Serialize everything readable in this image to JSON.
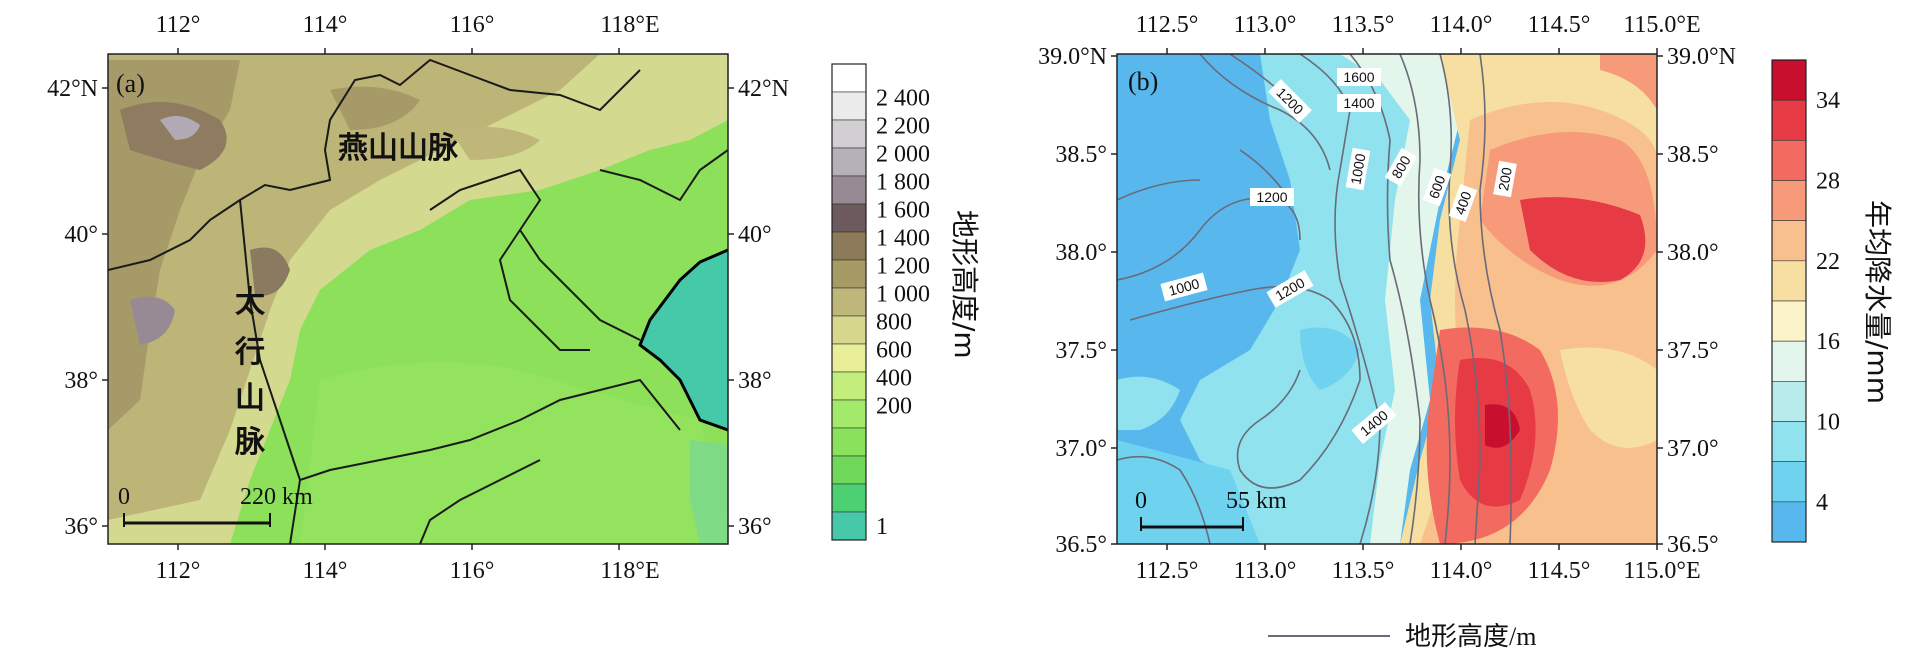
{
  "panel_a": {
    "label": "(a)",
    "x_ticks": [
      "112°",
      "114°",
      "116°",
      "118°E"
    ],
    "y_ticks_left": [
      "42°N",
      "40°",
      "38°",
      "36°"
    ],
    "y_ticks_right": [
      "42°N",
      "40°",
      "38°",
      "36°"
    ],
    "mountain_1": "燕山山脉",
    "mountain_2": [
      "太",
      "行",
      "山",
      "脉"
    ],
    "scale_start": "0",
    "scale_end": "220 km",
    "colorbar_title": "地形高度/m",
    "colorbar_labels": [
      "2 400",
      "2 200",
      "2 000",
      "1 800",
      "1 600",
      "1 400",
      "1 200",
      "1 000",
      "800",
      "600",
      "400",
      "200",
      "1"
    ],
    "colorbar_colors": [
      "#ffffff",
      "#ebebeb",
      "#d2cfd3",
      "#b6b0b8",
      "#978a94",
      "#6d5a5c",
      "#8c7a58",
      "#a69a65",
      "#bfb779",
      "#d7d88d",
      "#e9ee98",
      "#c4ee7c",
      "#a4ea6a",
      "#8ae25c",
      "#6fd85a",
      "#4bd173",
      "#45c9a8"
    ]
  },
  "panel_b": {
    "label": "(b)",
    "x_ticks": [
      "112.5°",
      "113.0°",
      "113.5°",
      "114.0°",
      "114.5°",
      "115.0°E"
    ],
    "y_ticks_left": [
      "39.0°N",
      "38.5°",
      "38.0°",
      "37.5°",
      "37.0°",
      "36.5°"
    ],
    "y_ticks_right": [
      "39.0°N",
      "38.5°",
      "38.0°",
      "37.5°",
      "37.0°",
      "36.5°"
    ],
    "contour_labels": [
      "1600",
      "1400",
      "1200",
      "1200",
      "1000",
      "1000",
      "800",
      "600",
      "400",
      "200",
      "1200",
      "1400"
    ],
    "scale_start": "0",
    "scale_end": "55 km",
    "colorbar_title": "年均降水量/mm",
    "colorbar_labels": [
      "34",
      "28",
      "22",
      "16",
      "10",
      "4"
    ],
    "colorbar_colors": [
      "#c8102e",
      "#e63a45",
      "#f26a60",
      "#f69a7a",
      "#f8c08c",
      "#f6dfa0",
      "#fbf4c8",
      "#e3f6ec",
      "#b8ecec",
      "#8fe2ee",
      "#6fd3f0",
      "#58b8ee"
    ],
    "legend_label": "地形高度/m"
  }
}
